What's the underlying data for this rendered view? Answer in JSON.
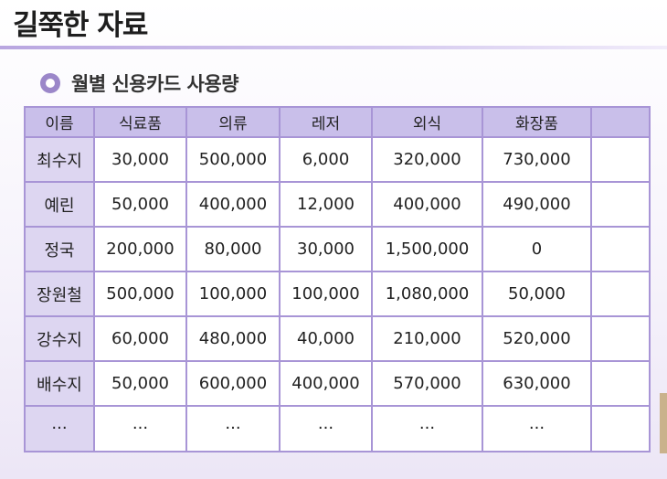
{
  "slide": {
    "title": "길쭉한 자료",
    "subtitle": "월별 신용카드 사용량"
  },
  "table": {
    "headers": [
      "이름",
      "식료품",
      "의류",
      "레저",
      "외식",
      "화장품",
      ""
    ],
    "rows": [
      [
        "최수지",
        "30,000",
        "500,000",
        "6,000",
        "320,000",
        "730,000",
        ""
      ],
      [
        "예린",
        "50,000",
        "400,000",
        "12,000",
        "400,000",
        "490,000",
        ""
      ],
      [
        "정국",
        "200,000",
        "80,000",
        "30,000",
        "1,500,000",
        "0",
        ""
      ],
      [
        "장원철",
        "500,000",
        "100,000",
        "100,000",
        "1,080,000",
        "50,000",
        ""
      ],
      [
        "강수지",
        "60,000",
        "480,000",
        "40,000",
        "210,000",
        "520,000",
        ""
      ],
      [
        "배수지",
        "50,000",
        "600,000",
        "400,000",
        "570,000",
        "630,000",
        ""
      ],
      [
        "...",
        "...",
        "...",
        "...",
        "...",
        "...",
        ""
      ]
    ]
  },
  "colors": {
    "header_fill": "#c9bfea",
    "rowhead_fill": "#ddd6f1",
    "grid_line": "#a895d6",
    "bullet": "#9b87c9"
  }
}
